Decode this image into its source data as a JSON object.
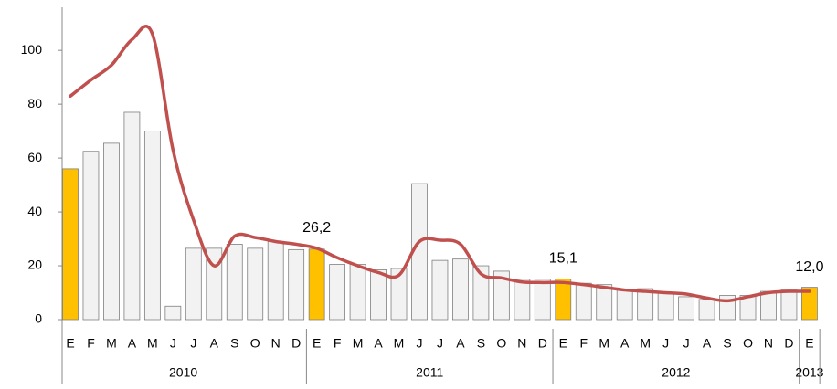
{
  "chart_data": {
    "type": "bar_line",
    "groups": [
      {
        "name": "2010",
        "categories": [
          "E",
          "F",
          "M",
          "A",
          "M",
          "J",
          "J",
          "A",
          "S",
          "O",
          "N",
          "D"
        ]
      },
      {
        "name": "2011",
        "categories": [
          "E",
          "F",
          "M",
          "A",
          "M",
          "J",
          "J",
          "A",
          "S",
          "O",
          "N",
          "D"
        ]
      },
      {
        "name": "2012",
        "categories": [
          "E",
          "F",
          "M",
          "A",
          "M",
          "J",
          "J",
          "A",
          "S",
          "O",
          "N",
          "D"
        ]
      },
      {
        "name": "2013",
        "categories": [
          "E"
        ]
      }
    ],
    "series": [
      {
        "type": "bar",
        "color": "#f2f2f2",
        "edge_color": "#7f7f7f",
        "colors": [
          "#ffc000",
          "#f2f2f2",
          "#f2f2f2",
          "#f2f2f2",
          "#f2f2f2",
          "#f2f2f2",
          "#f2f2f2",
          "#f2f2f2",
          "#f2f2f2",
          "#f2f2f2",
          "#f2f2f2",
          "#f2f2f2",
          "#ffc000",
          "#f2f2f2",
          "#f2f2f2",
          "#f2f2f2",
          "#f2f2f2",
          "#f2f2f2",
          "#f2f2f2",
          "#f2f2f2",
          "#f2f2f2",
          "#f2f2f2",
          "#f2f2f2",
          "#f2f2f2",
          "#ffc000",
          "#f2f2f2",
          "#f2f2f2",
          "#f2f2f2",
          "#f2f2f2",
          "#f2f2f2",
          "#f2f2f2",
          "#f2f2f2",
          "#f2f2f2",
          "#f2f2f2",
          "#f2f2f2",
          "#f2f2f2",
          "#ffc000"
        ],
        "values": [
          56,
          62.5,
          65.5,
          77,
          70,
          5,
          26.5,
          26.5,
          28,
          26.5,
          29,
          26,
          26.2,
          20.5,
          20.5,
          18.5,
          19,
          50.5,
          22,
          22.5,
          20,
          18,
          15,
          15,
          15.1,
          13.5,
          13,
          11,
          11.5,
          10,
          8.5,
          7.5,
          9,
          9,
          10.5,
          11,
          12.0
        ],
        "value_labels": [
          null,
          null,
          null,
          null,
          null,
          null,
          null,
          null,
          null,
          null,
          null,
          null,
          "26,2",
          null,
          null,
          null,
          null,
          null,
          null,
          null,
          null,
          null,
          null,
          null,
          "15,1",
          null,
          null,
          null,
          null,
          null,
          null,
          null,
          null,
          null,
          null,
          null,
          "12,0"
        ]
      },
      {
        "type": "line",
        "color": "#c0504d",
        "values": [
          83,
          89,
          94.5,
          104,
          106,
          63,
          37,
          20,
          31,
          30.5,
          29,
          28,
          26.5,
          23,
          20,
          17.5,
          16.5,
          29,
          29.5,
          28,
          17,
          15.5,
          14,
          13.8,
          13.8,
          13,
          12,
          11,
          10.5,
          10,
          9.5,
          8,
          7,
          8.5,
          10,
          10.5,
          10.5
        ]
      }
    ],
    "ylim": [
      0,
      116
    ],
    "yticks": [
      0,
      20,
      40,
      60,
      80,
      100
    ],
    "grid": false
  }
}
